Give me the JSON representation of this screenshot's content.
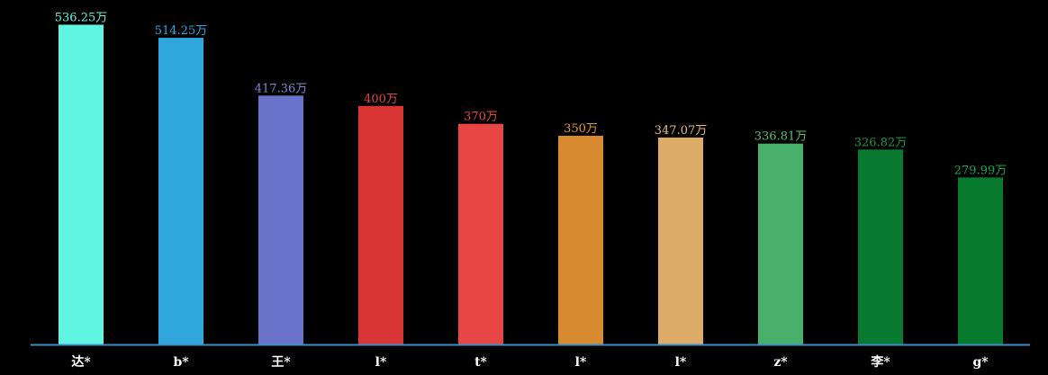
{
  "chart_data": {
    "type": "bar",
    "categories": [
      "达*",
      "b*",
      "王*",
      "l*",
      "t*",
      "l*",
      "l*",
      "z*",
      "李*",
      "g*"
    ],
    "values": [
      536.25,
      514.25,
      417.36,
      400,
      370,
      350,
      347.07,
      336.81,
      326.82,
      279.99
    ],
    "value_labels": [
      "536.25万",
      "514.25万",
      "417.36万",
      "400万",
      "370万",
      "350万",
      "347.07万",
      "336.81万",
      "326.82万",
      "279.99万"
    ],
    "colors": [
      "#5ef5e1",
      "#2fa7dd",
      "#6873c9",
      "#d93535",
      "#e84545",
      "#d88a30",
      "#dcac68",
      "#49b06c",
      "#0b7a31",
      "#077a2e"
    ],
    "label_colors": [
      "#5ef5e1",
      "#2fa7dd",
      "#7f88d4",
      "#e04444",
      "#e84545",
      "#e0962f",
      "#e8b874",
      "#4fc076",
      "#169a3c",
      "#17a745"
    ],
    "ylim": [
      0,
      560
    ],
    "grid": false,
    "axis_color": "#3a8fc6",
    "background": "#000000"
  }
}
